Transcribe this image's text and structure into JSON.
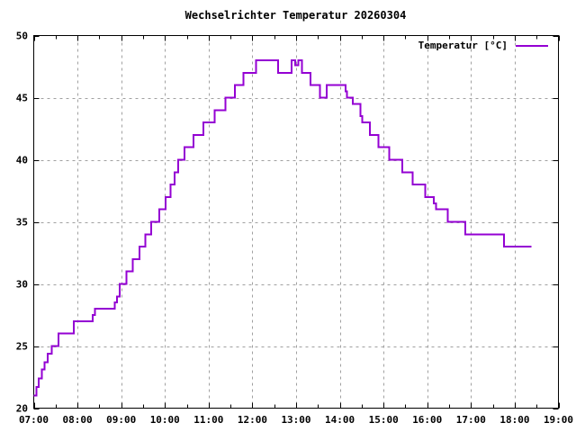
{
  "title": "Wechselrichter Temperatur 20260304",
  "legend": {
    "label": "Temperatur [°C]"
  },
  "colors": {
    "line": "#9400d3",
    "grid": "#a0a0a0",
    "axis": "#000000",
    "background": "#ffffff",
    "text": "#000000"
  },
  "chart_data": {
    "type": "line",
    "style": "steps-post",
    "title": "Wechselrichter Temperatur 20260304",
    "grid": true,
    "legend_position": "top-right-inside",
    "x_axis": {
      "kind": "time",
      "start": "07:00",
      "end": "19:00",
      "tick_labels": [
        "07:00",
        "08:00",
        "09:00",
        "10:00",
        "11:00",
        "12:00",
        "13:00",
        "14:00",
        "15:00",
        "16:00",
        "17:00",
        "18:00",
        "19:00"
      ],
      "minor_tick_minutes": 30
    },
    "y_axis": {
      "min": 20,
      "max": 50,
      "tick_step": 5,
      "tick_labels": [
        20,
        25,
        30,
        35,
        40,
        45,
        50
      ],
      "unit": "°C"
    },
    "series": [
      {
        "name": "Temperatur [°C]",
        "color": "#9400d3",
        "end_time": "18:23",
        "points": [
          [
            "07:00",
            21.0
          ],
          [
            "07:04",
            21.7
          ],
          [
            "07:07",
            22.4
          ],
          [
            "07:11",
            23.1
          ],
          [
            "07:15",
            23.7
          ],
          [
            "07:19",
            24.4
          ],
          [
            "07:25",
            25.0
          ],
          [
            "07:34",
            26.0
          ],
          [
            "07:55",
            27.0
          ],
          [
            "08:21",
            27.5
          ],
          [
            "08:24",
            28.0
          ],
          [
            "08:51",
            28.5
          ],
          [
            "08:54",
            29.0
          ],
          [
            "08:58",
            30.0
          ],
          [
            "09:07",
            31.0
          ],
          [
            "09:16",
            32.0
          ],
          [
            "09:25",
            33.0
          ],
          [
            "09:33",
            34.0
          ],
          [
            "09:41",
            35.0
          ],
          [
            "09:52",
            36.0
          ],
          [
            "10:01",
            37.0
          ],
          [
            "10:08",
            38.0
          ],
          [
            "10:13",
            39.0
          ],
          [
            "10:18",
            40.0
          ],
          [
            "10:27",
            41.0
          ],
          [
            "10:39",
            42.0
          ],
          [
            "10:53",
            43.0
          ],
          [
            "11:08",
            44.0
          ],
          [
            "11:23",
            45.0
          ],
          [
            "11:36",
            46.0
          ],
          [
            "11:48",
            47.0
          ],
          [
            "12:05",
            48.0
          ],
          [
            "12:35",
            47.0
          ],
          [
            "12:54",
            48.0
          ],
          [
            "12:59",
            47.6
          ],
          [
            "13:03",
            48.0
          ],
          [
            "13:08",
            47.0
          ],
          [
            "13:20",
            46.0
          ],
          [
            "13:33",
            45.0
          ],
          [
            "13:42",
            46.0
          ],
          [
            "14:08",
            45.5
          ],
          [
            "14:10",
            45.0
          ],
          [
            "14:18",
            44.5
          ],
          [
            "14:28",
            43.5
          ],
          [
            "14:31",
            43.0
          ],
          [
            "14:41",
            42.0
          ],
          [
            "14:53",
            41.0
          ],
          [
            "15:08",
            40.0
          ],
          [
            "15:26",
            39.0
          ],
          [
            "15:40",
            38.0
          ],
          [
            "15:57",
            37.0
          ],
          [
            "16:09",
            36.5
          ],
          [
            "16:12",
            36.0
          ],
          [
            "16:28",
            35.0
          ],
          [
            "16:52",
            34.0
          ],
          [
            "17:45",
            33.0
          ],
          [
            "18:23",
            33.0
          ]
        ]
      }
    ]
  }
}
